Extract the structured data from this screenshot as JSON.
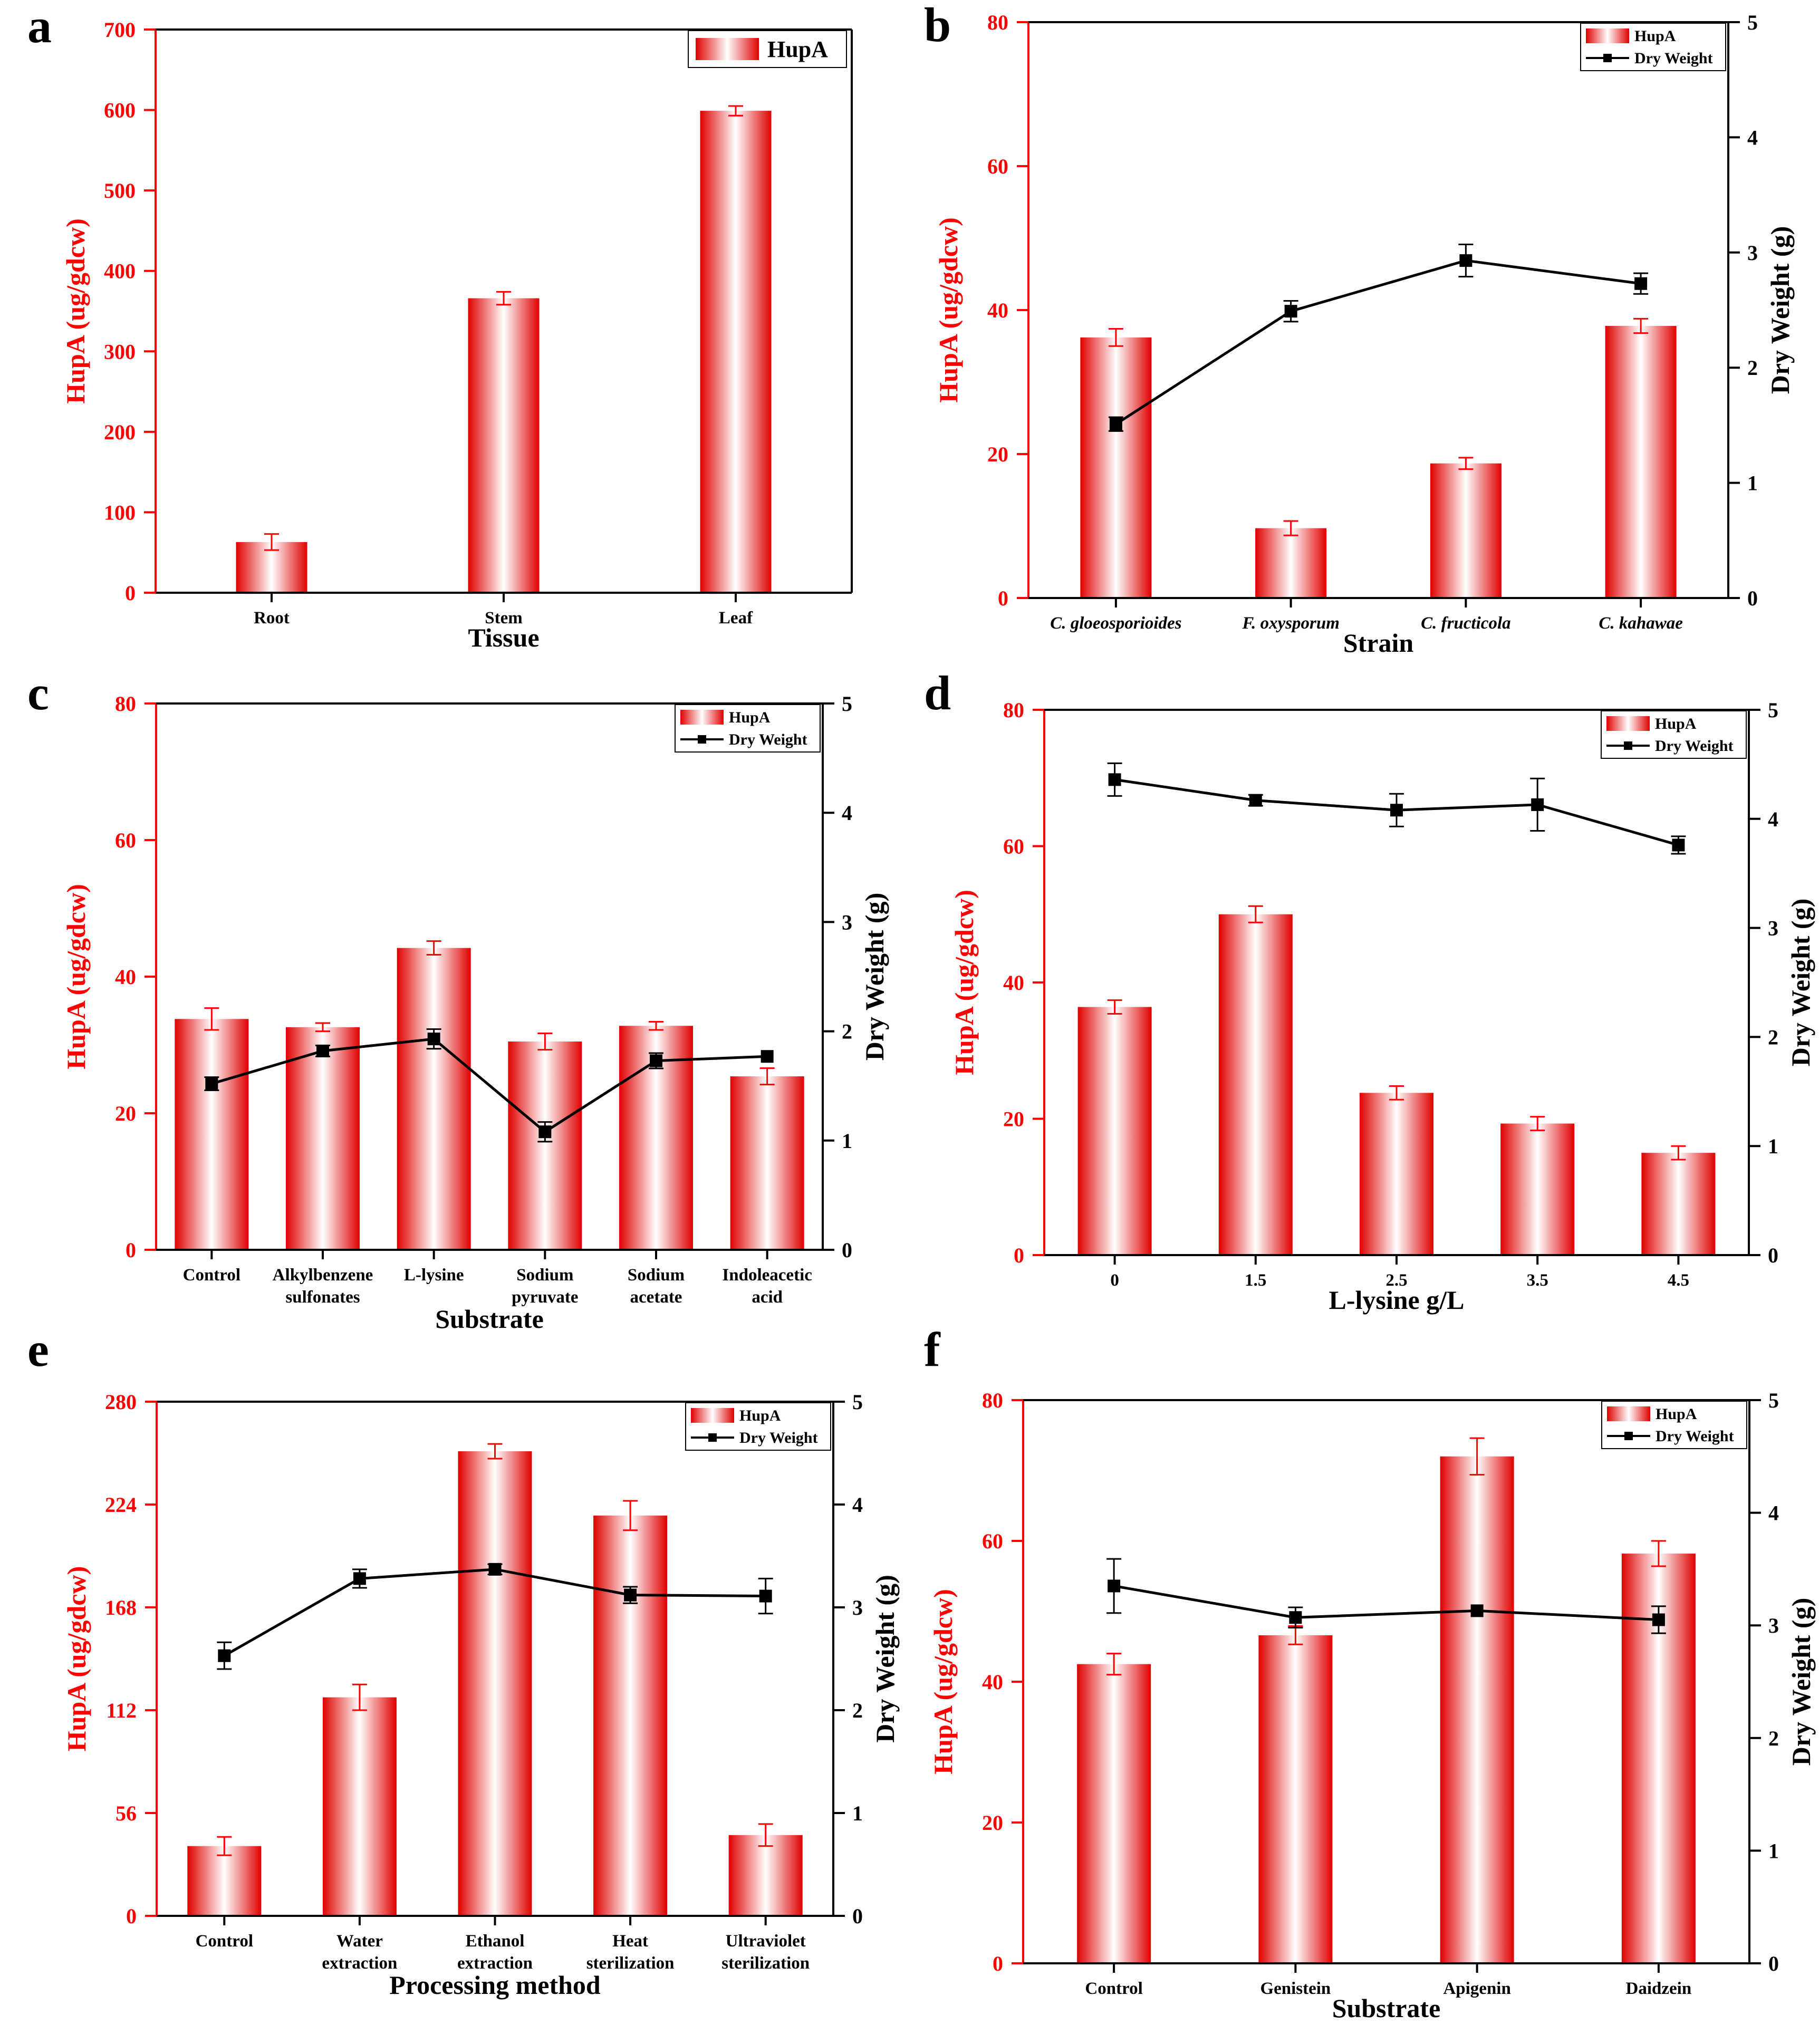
{
  "colors": {
    "hup_axis": "#ff0000",
    "bar_edge": "#e00000",
    "bar_center": "#ffffff",
    "dry_weight": "#000000"
  },
  "chart_data": [
    {
      "id": "a",
      "panel_letter": "a",
      "type": "bar",
      "title": "",
      "categories": [
        "Root",
        "Stem",
        "Leaf"
      ],
      "xlabel": "Tissue",
      "ylabel": "HupA (ug/gdcw)",
      "ylim": [
        0,
        700
      ],
      "yticks": [
        0,
        100,
        200,
        300,
        400,
        500,
        600,
        700
      ],
      "legend_position": "top-right",
      "series": [
        {
          "name": "HupA",
          "axis": "left",
          "type": "bar",
          "values": [
            63,
            366,
            599
          ],
          "errors": [
            10,
            8,
            6
          ]
        }
      ]
    },
    {
      "id": "b",
      "panel_letter": "b",
      "type": "bar",
      "title": "",
      "categories": [
        "C. gloeosporioides",
        "F. oxysporum",
        "C. fructicola",
        "C. kahawae"
      ],
      "category_style": "italic",
      "xlabel": "Strain",
      "ylabel": "HupA (ug/gdcw)",
      "y2label": "Dry Weight (g)",
      "ylim": [
        0,
        80
      ],
      "yticks": [
        0,
        20,
        40,
        60,
        80
      ],
      "y2lim": [
        0,
        5
      ],
      "y2ticks": [
        0,
        1,
        2,
        3,
        4,
        5
      ],
      "legend_position": "top-right",
      "series": [
        {
          "name": "HupA",
          "axis": "left",
          "type": "bar",
          "values": [
            36.2,
            9.7,
            18.7,
            37.8
          ],
          "errors": [
            1.2,
            1.0,
            0.8,
            1.0
          ]
        },
        {
          "name": "Dry Weight",
          "axis": "right",
          "type": "line",
          "values": [
            1.51,
            2.49,
            2.93,
            2.73
          ],
          "errors": [
            0.06,
            0.09,
            0.14,
            0.09
          ]
        }
      ]
    },
    {
      "id": "c",
      "panel_letter": "c",
      "type": "bar",
      "title": "",
      "categories": [
        "Control",
        "Alkylbenzene sulfonates",
        "L-lysine",
        "Sodium pyruvate",
        "Sodium acetate",
        "Indoleacetic acid"
      ],
      "category_lines": [
        [
          "Control"
        ],
        [
          "Alkylbenzene",
          "sulfonates"
        ],
        [
          "L-lysine"
        ],
        [
          "Sodium",
          "pyruvate"
        ],
        [
          "Sodium",
          "acetate"
        ],
        [
          "Indoleacetic",
          "acid"
        ]
      ],
      "xlabel": "Substrate",
      "ylabel": "HupA (ug/gdcw)",
      "y2label": "Dry Weight (g)",
      "ylim": [
        0,
        80
      ],
      "yticks": [
        0,
        20,
        40,
        60,
        80
      ],
      "y2lim": [
        0,
        5
      ],
      "y2ticks": [
        0,
        1,
        2,
        3,
        4,
        5
      ],
      "legend_position": "top-right",
      "series": [
        {
          "name": "HupA",
          "axis": "left",
          "type": "bar",
          "values": [
            33.8,
            32.6,
            44.2,
            30.5,
            32.8,
            25.4
          ],
          "errors": [
            1.6,
            0.6,
            1.0,
            1.2,
            0.6,
            1.2
          ]
        },
        {
          "name": "Dry Weight",
          "axis": "right",
          "type": "line",
          "values": [
            1.52,
            1.82,
            1.93,
            1.08,
            1.73,
            1.77
          ],
          "errors": [
            0.06,
            0.05,
            0.09,
            0.09,
            0.07,
            0.0
          ]
        }
      ]
    },
    {
      "id": "d",
      "panel_letter": "d",
      "type": "bar",
      "title": "",
      "categories": [
        "0",
        "1.5",
        "2.5",
        "3.5",
        "4.5"
      ],
      "xlabel": "L-lysine g/L",
      "ylabel": "HupA (ug/gdcw)",
      "y2label": "Dry Weight (g)",
      "ylim": [
        0,
        80
      ],
      "yticks": [
        0,
        20,
        40,
        60,
        80
      ],
      "y2lim": [
        0,
        5
      ],
      "y2ticks": [
        0,
        1,
        2,
        3,
        4,
        5
      ],
      "legend_position": "top-right",
      "series": [
        {
          "name": "HupA",
          "axis": "left",
          "type": "bar",
          "values": [
            36.4,
            50.0,
            23.8,
            19.3,
            15.0
          ],
          "errors": [
            1.0,
            1.2,
            1.0,
            1.0,
            1.0
          ]
        },
        {
          "name": "Dry Weight",
          "axis": "right",
          "type": "line",
          "values": [
            4.36,
            4.17,
            4.08,
            4.13,
            3.76
          ],
          "errors": [
            0.15,
            0.05,
            0.15,
            0.24,
            0.08
          ]
        }
      ]
    },
    {
      "id": "e",
      "panel_letter": "e",
      "type": "bar",
      "title": "",
      "categories": [
        "Control",
        "Water extraction",
        "Ethanol extraction",
        "Heat sterilization",
        "Ultraviolet sterilization"
      ],
      "category_lines": [
        [
          "Control"
        ],
        [
          "Water",
          "extraction"
        ],
        [
          "Ethanol",
          "extraction"
        ],
        [
          "Heat",
          "sterilization"
        ],
        [
          "Ultraviolet",
          "sterilization"
        ]
      ],
      "xlabel": "Processing method",
      "ylabel": "HupA (ug/gdcw)",
      "y2label": "Dry Weight (g)",
      "ylim": [
        0,
        280
      ],
      "yticks": [
        0,
        56,
        112,
        168,
        224,
        280
      ],
      "y2lim": [
        0,
        5
      ],
      "y2ticks": [
        0,
        1,
        2,
        3,
        4,
        5
      ],
      "legend_position": "top-right",
      "series": [
        {
          "name": "HupA",
          "axis": "left",
          "type": "bar",
          "values": [
            38,
            119,
            253,
            218,
            44
          ],
          "errors": [
            5,
            7,
            4,
            8,
            6
          ]
        },
        {
          "name": "Dry Weight",
          "axis": "right",
          "type": "line",
          "values": [
            2.53,
            3.28,
            3.37,
            3.12,
            3.11
          ],
          "errors": [
            0.13,
            0.09,
            0.05,
            0.08,
            0.17
          ]
        }
      ]
    },
    {
      "id": "f",
      "panel_letter": "f",
      "type": "bar",
      "title": "",
      "categories": [
        "Control",
        "Genistein",
        "Apigenin",
        "Daidzein"
      ],
      "xlabel": "Substrate",
      "ylabel": "HupA (ug/gdcw)",
      "y2label": "Dry Weight (g)",
      "ylim": [
        0,
        80
      ],
      "yticks": [
        0,
        20,
        40,
        60,
        80
      ],
      "y2lim": [
        0,
        5
      ],
      "y2ticks": [
        0,
        1,
        2,
        3,
        4,
        5
      ],
      "legend_position": "top-right",
      "series": [
        {
          "name": "HupA",
          "axis": "left",
          "type": "bar",
          "values": [
            42.5,
            46.6,
            72.0,
            58.2
          ],
          "errors": [
            1.5,
            1.3,
            2.6,
            1.8
          ]
        },
        {
          "name": "Dry Weight",
          "axis": "right",
          "type": "line",
          "values": [
            3.35,
            3.07,
            3.13,
            3.05
          ],
          "errors": [
            0.24,
            0.09,
            0.0,
            0.12
          ]
        }
      ]
    }
  ]
}
